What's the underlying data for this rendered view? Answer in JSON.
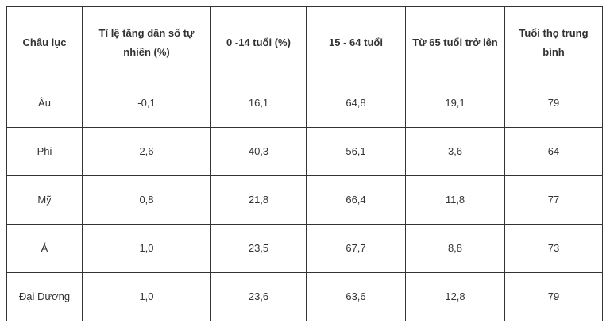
{
  "table": {
    "header": [
      "Châu lục",
      "Tỉ lệ tăng dân số tự nhiên (%)",
      "0 -14 tuổi (%)",
      "15 - 64 tuổi",
      "Từ 65 tuổi trở lên",
      "Tuổi thọ trung bình"
    ],
    "rows": [
      [
        "Âu",
        "-0,1",
        "16,1",
        "64,8",
        "19,1",
        "79"
      ],
      [
        "Phi",
        "2,6",
        "40,3",
        "56,1",
        "3,6",
        "64"
      ],
      [
        "Mỹ",
        "0,8",
        "21,8",
        "66,4",
        "11,8",
        "77"
      ],
      [
        "Á",
        "1,0",
        "23,5",
        "67,7",
        "8,8",
        "73"
      ],
      [
        "Đại Dương",
        "1,0",
        "23,6",
        "63,6",
        "12,8",
        "79"
      ]
    ]
  }
}
